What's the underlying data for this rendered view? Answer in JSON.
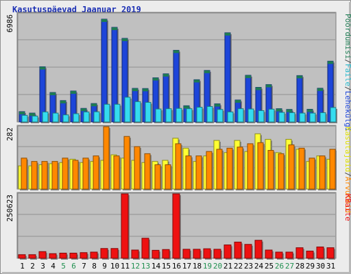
{
  "title": "Kasutuspäevad Jaanuar 2019",
  "colors": {
    "hits": "#1d45d9",
    "hits_top": "#1e7c53",
    "files": "#35dcef",
    "pages": "#ff8800",
    "visits": "#ffff33",
    "kbytes": "#ee1111",
    "weekend_label": "#1f8f4f",
    "weekday_label": "#000000",
    "panel_bg": "#c0c0c0"
  },
  "chart_data": [
    {
      "type": "bar",
      "panel": "top",
      "ymax_label": "6986",
      "ymax": 6986,
      "right_labels": [
        {
          "text": "Pöördumisi",
          "color": "#1e7c53"
        },
        {
          "text": "/",
          "color": "#444444"
        },
        {
          "text": "Faile",
          "color": "#2bb9cc"
        },
        {
          "text": "/",
          "color": "#444444"
        },
        {
          "text": "Lehekülgi",
          "color": "#1d45d9"
        }
      ],
      "categories": [
        "1",
        "2",
        "3",
        "4",
        "5",
        "6",
        "7",
        "8",
        "9",
        "10",
        "11",
        "12",
        "13",
        "14",
        "15",
        "16",
        "17",
        "18",
        "19",
        "20",
        "21",
        "22",
        "23",
        "24",
        "25",
        "26",
        "27",
        "28",
        "29",
        "30",
        "31"
      ],
      "series": [
        {
          "name": "Pöördumisi",
          "values": [
            700,
            600,
            3750,
            2000,
            1450,
            2100,
            920,
            1250,
            6986,
            6430,
            5680,
            2280,
            2270,
            3000,
            3270,
            4870,
            1100,
            2870,
            3500,
            1230,
            6060,
            1490,
            3170,
            2350,
            2540,
            900,
            850,
            3150,
            860,
            2290,
            4130
          ]
        },
        {
          "name": "Faile",
          "values": [
            450,
            400,
            680,
            600,
            480,
            560,
            680,
            690,
            1200,
            1200,
            1680,
            1380,
            1330,
            880,
            900,
            920,
            900,
            1000,
            1050,
            850,
            680,
            900,
            880,
            770,
            870,
            650,
            630,
            600,
            600,
            630,
            980
          ]
        }
      ]
    },
    {
      "type": "bar",
      "panel": "middle",
      "ymax_label": "282",
      "ymax": 282,
      "right_labels": [
        {
          "text": "Kasutajaid",
          "color": "#e0e000"
        },
        {
          "text": "/",
          "color": "#444444"
        },
        {
          "text": "Arvuteid",
          "color": "#ff8800"
        }
      ],
      "categories": [
        "1",
        "2",
        "3",
        "4",
        "5",
        "6",
        "7",
        "8",
        "9",
        "10",
        "11",
        "12",
        "13",
        "14",
        "15",
        "16",
        "17",
        "18",
        "19",
        "20",
        "21",
        "22",
        "23",
        "24",
        "25",
        "26",
        "27",
        "28",
        "29",
        "30",
        "31"
      ],
      "series": [
        {
          "name": "Kasutajaid",
          "values": [
            105,
            105,
            110,
            115,
            120,
            135,
            120,
            125,
            130,
            155,
            140,
            130,
            120,
            125,
            130,
            230,
            185,
            125,
            150,
            220,
            165,
            220,
            170,
            250,
            225,
            165,
            225,
            180,
            125,
            150,
            135
          ]
        },
        {
          "name": "Arvuteid",
          "values": [
            140,
            125,
            125,
            125,
            140,
            130,
            140,
            150,
            282,
            150,
            238,
            192,
            160,
            110,
            110,
            205,
            150,
            150,
            170,
            180,
            185,
            190,
            205,
            210,
            175,
            160,
            200,
            185,
            140,
            150,
            180
          ]
        }
      ]
    },
    {
      "type": "bar",
      "panel": "bottom",
      "ymax_label": "250623",
      "ymax": 250623,
      "right_labels": [
        {
          "text": "KBaite",
          "color": "#ee1111"
        }
      ],
      "categories": [
        "1",
        "2",
        "3",
        "4",
        "5",
        "6",
        "7",
        "8",
        "9",
        "10",
        "11",
        "12",
        "13",
        "14",
        "15",
        "16",
        "17",
        "18",
        "19",
        "20",
        "21",
        "22",
        "23",
        "24",
        "25",
        "26",
        "27",
        "28",
        "29",
        "30",
        "31"
      ],
      "series": [
        {
          "name": "KBaite",
          "values": [
            14000,
            14000,
            26000,
            18000,
            20000,
            20000,
            22000,
            24000,
            38000,
            38000,
            250623,
            32000,
            78000,
            31000,
            34000,
            250623,
            35000,
            35000,
            37000,
            35000,
            52000,
            63000,
            54000,
            70000,
            32000,
            24000,
            24000,
            41000,
            28000,
            44000,
            41000
          ]
        }
      ]
    }
  ],
  "weekend_days": [
    "5",
    "6",
    "12",
    "13",
    "19",
    "20",
    "26",
    "27"
  ]
}
